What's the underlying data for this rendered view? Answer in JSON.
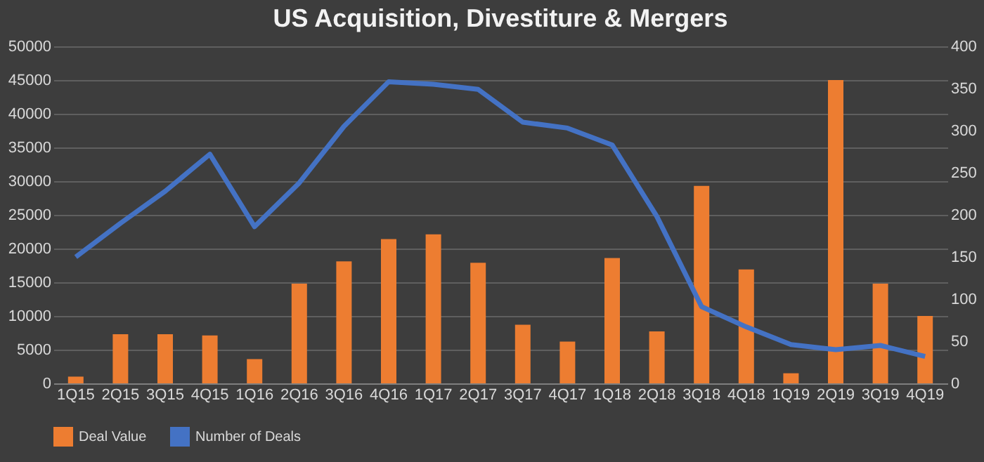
{
  "chart_data": {
    "type": "bar",
    "title": "US Acquisition, Divestiture & Mergers",
    "categories": [
      "1Q15",
      "2Q15",
      "3Q15",
      "4Q15",
      "1Q16",
      "2Q16",
      "3Q16",
      "4Q16",
      "1Q17",
      "2Q17",
      "3Q17",
      "4Q17",
      "1Q18",
      "2Q18",
      "3Q18",
      "4Q18",
      "1Q19",
      "2Q19",
      "3Q19",
      "4Q19"
    ],
    "series": [
      {
        "name": "Deal Value",
        "color": "#ed7d31",
        "values": [
          1000,
          7300,
          7300,
          7100,
          3600,
          14800,
          18100,
          21400,
          22100,
          17900,
          8700,
          6200,
          18600,
          7700,
          29300,
          16900,
          1500,
          45000,
          14800,
          10000
        ]
      },
      {
        "name": "Number of Deals",
        "type": "line",
        "axis": "y2",
        "color": "#4472c4",
        "values": [
          150,
          190,
          228,
          272,
          186,
          238,
          305,
          358,
          355,
          349,
          310,
          303,
          283,
          198,
          91,
          67,
          46,
          40,
          45,
          32
        ]
      }
    ],
    "ylim": [
      0,
      50000
    ],
    "yticks": [
      0,
      5000,
      10000,
      15000,
      20000,
      25000,
      30000,
      35000,
      40000,
      45000,
      50000
    ],
    "y2lim": [
      0,
      400
    ],
    "y2ticks": [
      0,
      50,
      100,
      150,
      200,
      250,
      300,
      350,
      400
    ],
    "grid": "y",
    "legend": "bottom"
  }
}
